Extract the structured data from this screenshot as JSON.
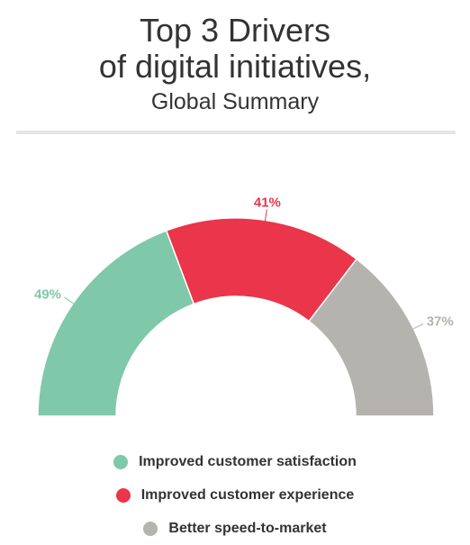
{
  "title": {
    "line1": "Top 3 Drivers",
    "line2": "of digital initiatives,",
    "subtitle": "Global Summary"
  },
  "chart_data": {
    "type": "pie",
    "variant": "semi-donut",
    "categories": [
      "Improved customer satisfaction",
      "Improved customer experience",
      "Better speed-to-market"
    ],
    "values": [
      49,
      41,
      37
    ],
    "labels": [
      "49%",
      "41%",
      "37%"
    ],
    "colors": [
      "#7fc8a9",
      "#ea354b",
      "#b5b3ae"
    ],
    "legend_position": "bottom"
  }
}
